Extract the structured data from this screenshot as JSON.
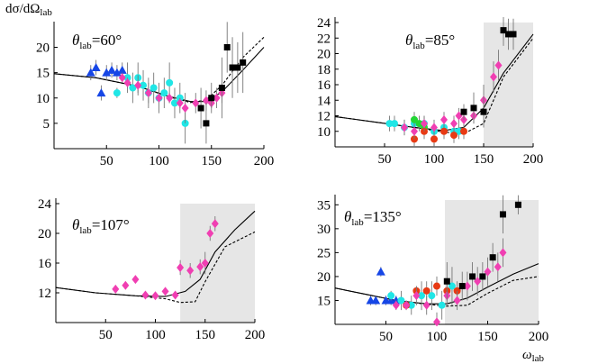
{
  "figure": {
    "y_axis_label": "dσ/dΩ",
    "y_axis_label_sub": "lab",
    "x_axis_label": "ω",
    "x_axis_label_sub": "lab"
  },
  "colors": {
    "blue": "#1646e6",
    "cyan": "#20e6e6",
    "magenta": "#f03fb2",
    "black": "#000000",
    "red": "#e83a14",
    "green": "#22d634",
    "shade": "#e6e6e6"
  },
  "chart_data": [
    {
      "type": "scatter",
      "title_symbol": "θ",
      "title_sub": "lab",
      "title_value": "=60°",
      "xlim": [
        0,
        200
      ],
      "ylim": [
        0,
        24
      ],
      "x_axis_y": 0,
      "xticks": [
        50,
        100,
        150,
        200
      ],
      "yticks": [
        5,
        10,
        15,
        20
      ],
      "shaded_from": null,
      "series": [
        {
          "name": "blue",
          "shape": "triangle",
          "points": [
            [
              35,
              15,
              1.5
            ],
            [
              40,
              16,
              1.5
            ],
            [
              45,
              11,
              1.5
            ],
            [
              50,
              15,
              1.5
            ],
            [
              55,
              15.5,
              1.5
            ],
            [
              60,
              15,
              1.5
            ],
            [
              65,
              15.5,
              1.5
            ]
          ]
        },
        {
          "name": "cyan",
          "shape": "circle",
          "points": [
            [
              60,
              11,
              1
            ],
            [
              70,
              14,
              3
            ],
            [
              75,
              12,
              3
            ],
            [
              80,
              14,
              3
            ],
            [
              85,
              12.5,
              3
            ],
            [
              90,
              11,
              3
            ],
            [
              95,
              12,
              3
            ],
            [
              100,
              10,
              3
            ],
            [
              105,
              11,
              3
            ],
            [
              110,
              13,
              4
            ],
            [
              115,
              9,
              3
            ],
            [
              120,
              10,
              3
            ],
            [
              125,
              5,
              4
            ]
          ]
        },
        {
          "name": "magenta",
          "shape": "diamond",
          "points": [
            [
              65,
              14,
              1
            ],
            [
              70,
              13,
              1
            ],
            [
              80,
              12.5,
              2
            ],
            [
              90,
              11,
              2
            ],
            [
              100,
              10,
              1
            ],
            [
              110,
              10,
              1
            ],
            [
              120,
              9,
              1
            ],
            [
              125,
              8,
              3
            ],
            [
              135,
              9,
              2
            ],
            [
              145,
              9.5,
              2
            ],
            [
              150,
              9,
              1
            ],
            [
              155,
              10,
              2
            ],
            [
              160,
              11,
              2
            ]
          ]
        },
        {
          "name": "black",
          "shape": "square",
          "points": [
            [
              140,
              8,
              4
            ],
            [
              145,
              5,
              4
            ],
            [
              150,
              10,
              3
            ],
            [
              160,
              12,
              6
            ],
            [
              165,
              20,
              5
            ],
            [
              170,
              16,
              6
            ],
            [
              175,
              16,
              5
            ],
            [
              180,
              17,
              6
            ]
          ]
        }
      ],
      "curves": [
        {
          "style": "solid",
          "points": [
            [
              0,
              14.8
            ],
            [
              40,
              14
            ],
            [
              80,
              12.3
            ],
            [
              110,
              10.3
            ],
            [
              130,
              9.3
            ],
            [
              145,
              9.3
            ],
            [
              160,
              11.2
            ],
            [
              180,
              15.5
            ],
            [
              200,
              20
            ]
          ]
        },
        {
          "style": "dashed",
          "points": [
            [
              0,
              14.8
            ],
            [
              40,
              14
            ],
            [
              80,
              12.3
            ],
            [
              110,
              10.2
            ],
            [
              130,
              9.1
            ],
            [
              145,
              9.6
            ],
            [
              160,
              12.5
            ],
            [
              180,
              18
            ],
            [
              200,
              22
            ]
          ]
        }
      ]
    },
    {
      "type": "scatter",
      "title_symbol": "θ",
      "title_sub": "lab",
      "title_value": "=85°",
      "xlim": [
        0,
        200
      ],
      "ylim": [
        8,
        24
      ],
      "x_axis_y": 8,
      "xticks": [
        50,
        100,
        150,
        200
      ],
      "yticks": [
        10,
        12,
        14,
        16,
        18,
        20,
        22,
        24
      ],
      "shaded_from": 150,
      "series": [
        {
          "name": "cyan",
          "shape": "circle",
          "points": [
            [
              55,
              11,
              1
            ],
            [
              60,
              11,
              1
            ],
            [
              70,
              10.5,
              1
            ],
            [
              80,
              11,
              1
            ],
            [
              90,
              11,
              1
            ],
            [
              100,
              10,
              1
            ],
            [
              110,
              10.5,
              1
            ],
            [
              120,
              10,
              1
            ],
            [
              125,
              10,
              1
            ]
          ]
        },
        {
          "name": "green",
          "shape": "circle",
          "points": [
            [
              80,
              11.5,
              1
            ],
            [
              85,
              11,
              1
            ],
            [
              90,
              10.5,
              1
            ]
          ]
        },
        {
          "name": "red",
          "shape": "circle",
          "points": [
            [
              80,
              9,
              1
            ],
            [
              90,
              10,
              1
            ],
            [
              100,
              9,
              1
            ],
            [
              110,
              10,
              1
            ],
            [
              120,
              9.5,
              1
            ],
            [
              130,
              10,
              1
            ]
          ]
        },
        {
          "name": "magenta",
          "shape": "diamond",
          "points": [
            [
              70,
              10.5,
              1
            ],
            [
              80,
              10,
              1
            ],
            [
              90,
              11,
              1
            ],
            [
              100,
              10.5,
              1
            ],
            [
              110,
              11.5,
              1
            ],
            [
              120,
              11,
              1
            ],
            [
              125,
              12,
              1
            ],
            [
              130,
              11.5,
              1
            ],
            [
              140,
              12,
              1
            ],
            [
              150,
              14,
              2
            ],
            [
              160,
              17,
              2
            ],
            [
              165,
              18.5,
              2
            ]
          ]
        },
        {
          "name": "black",
          "shape": "square",
          "points": [
            [
              130,
              12.5,
              1
            ],
            [
              140,
              13,
              2
            ],
            [
              150,
              12.5,
              2
            ],
            [
              170,
              23,
              2
            ],
            [
              175,
              22.5,
              2
            ],
            [
              180,
              22.5,
              2
            ]
          ]
        }
      ],
      "curves": [
        {
          "style": "solid",
          "points": [
            [
              0,
              11.9
            ],
            [
              40,
              11.2
            ],
            [
              80,
              10.5
            ],
            [
              110,
              10.1
            ],
            [
              130,
              10.5
            ],
            [
              150,
              13
            ],
            [
              170,
              17.5
            ],
            [
              200,
              22.5
            ]
          ]
        },
        {
          "style": "dashed",
          "points": [
            [
              0,
              11.9
            ],
            [
              40,
              11.2
            ],
            [
              80,
              10.5
            ],
            [
              110,
              9.9
            ],
            [
              130,
              9.7
            ],
            [
              150,
              11
            ],
            [
              170,
              17
            ],
            [
              200,
              22
            ]
          ]
        }
      ]
    },
    {
      "type": "scatter",
      "title_symbol": "θ",
      "title_sub": "lab",
      "title_value": "=107°",
      "xlim": [
        0,
        200
      ],
      "ylim": [
        8,
        24
      ],
      "x_axis_y": 8,
      "xticks": [
        50,
        100,
        150,
        200
      ],
      "yticks": [
        12,
        16,
        20,
        24
      ],
      "shaded_from": 125,
      "series": [
        {
          "name": "magenta",
          "shape": "diamond",
          "points": [
            [
              60,
              12.5,
              0.5
            ],
            [
              70,
              13,
              0.5
            ],
            [
              80,
              13.8,
              0.5
            ],
            [
              90,
              11.7,
              0.5
            ],
            [
              100,
              11.6,
              0.5
            ],
            [
              110,
              12.2,
              0.5
            ],
            [
              120,
              11.7,
              0.5
            ],
            [
              125,
              15.4,
              1
            ],
            [
              135,
              15,
              1
            ],
            [
              145,
              15.5,
              1
            ],
            [
              150,
              16,
              1.5
            ],
            [
              155,
              20,
              1
            ],
            [
              160,
              21.3,
              1
            ]
          ]
        }
      ],
      "curves": [
        {
          "style": "solid",
          "points": [
            [
              0,
              12.7
            ],
            [
              40,
              12
            ],
            [
              80,
              11.6
            ],
            [
              110,
              11.5
            ],
            [
              130,
              12.2
            ],
            [
              145,
              13.8
            ],
            [
              160,
              17.5
            ],
            [
              180,
              20.5
            ],
            [
              200,
              23
            ]
          ]
        },
        {
          "style": "dashed",
          "points": [
            [
              0,
              12.7
            ],
            [
              40,
              12
            ],
            [
              80,
              11.6
            ],
            [
              110,
              11.2
            ],
            [
              125,
              10.7
            ],
            [
              140,
              10.8
            ],
            [
              150,
              13.5
            ],
            [
              170,
              18.2
            ],
            [
              200,
              20.2
            ]
          ]
        }
      ]
    },
    {
      "type": "scatter",
      "title_symbol": "θ",
      "title_sub": "lab",
      "title_value": "=135°",
      "xlim": [
        0,
        200
      ],
      "ylim": [
        10,
        36
      ],
      "x_axis_y": 10,
      "xticks": [
        50,
        100,
        150,
        200
      ],
      "yticks": [
        15,
        20,
        25,
        30,
        35
      ],
      "shaded_from": 108,
      "series": [
        {
          "name": "blue",
          "shape": "triangle",
          "points": [
            [
              35,
              15,
              1
            ],
            [
              40,
              15,
              1
            ],
            [
              45,
              21,
              1
            ],
            [
              50,
              15,
              1
            ],
            [
              55,
              15,
              1
            ],
            [
              60,
              15,
              1
            ]
          ]
        },
        {
          "name": "cyan",
          "shape": "circle",
          "points": [
            [
              55,
              16,
              1
            ],
            [
              65,
              15,
              2
            ],
            [
              75,
              14,
              2
            ],
            [
              85,
              16,
              3
            ],
            [
              95,
              16,
              3
            ],
            [
              105,
              14,
              3
            ],
            [
              115,
              18,
              4
            ]
          ]
        },
        {
          "name": "red",
          "shape": "circle",
          "points": [
            [
              70,
              14,
              1
            ],
            [
              80,
              17,
              1
            ],
            [
              90,
              17,
              2
            ],
            [
              100,
              18,
              2
            ],
            [
              110,
              17,
              2
            ],
            [
              120,
              17,
              2
            ]
          ]
        },
        {
          "name": "magenta",
          "shape": "diamond",
          "points": [
            [
              60,
              14,
              1
            ],
            [
              70,
              14,
              1
            ],
            [
              80,
              16,
              2
            ],
            [
              90,
              14,
              2
            ],
            [
              100,
              10.5,
              2
            ],
            [
              110,
              16,
              2
            ],
            [
              120,
              15,
              2
            ],
            [
              130,
              18,
              3
            ],
            [
              140,
              19,
              3
            ],
            [
              150,
              21,
              3
            ],
            [
              160,
              22,
              3
            ],
            [
              165,
              25,
              3
            ]
          ]
        },
        {
          "name": "black",
          "shape": "square",
          "points": [
            [
              110,
              19,
              4
            ],
            [
              125,
              18,
              3
            ],
            [
              135,
              20,
              3
            ],
            [
              145,
              20,
              3
            ],
            [
              155,
              24,
              3
            ],
            [
              165,
              33,
              4
            ],
            [
              180,
              35,
              2
            ]
          ]
        }
      ],
      "curves": [
        {
          "style": "solid",
          "points": [
            [
              0,
              17.6
            ],
            [
              30,
              16.3
            ],
            [
              60,
              15
            ],
            [
              90,
              14.3
            ],
            [
              110,
              14.3
            ],
            [
              130,
              15.5
            ],
            [
              150,
              17.8
            ],
            [
              175,
              20.5
            ],
            [
              200,
              22.7
            ]
          ]
        },
        {
          "style": "dashed",
          "points": [
            [
              0,
              17.6
            ],
            [
              30,
              16.3
            ],
            [
              60,
              15
            ],
            [
              90,
              14.2
            ],
            [
              110,
              13.8
            ],
            [
              130,
              14
            ],
            [
              150,
              16.5
            ],
            [
              175,
              19.2
            ],
            [
              200,
              20
            ]
          ]
        }
      ]
    }
  ]
}
